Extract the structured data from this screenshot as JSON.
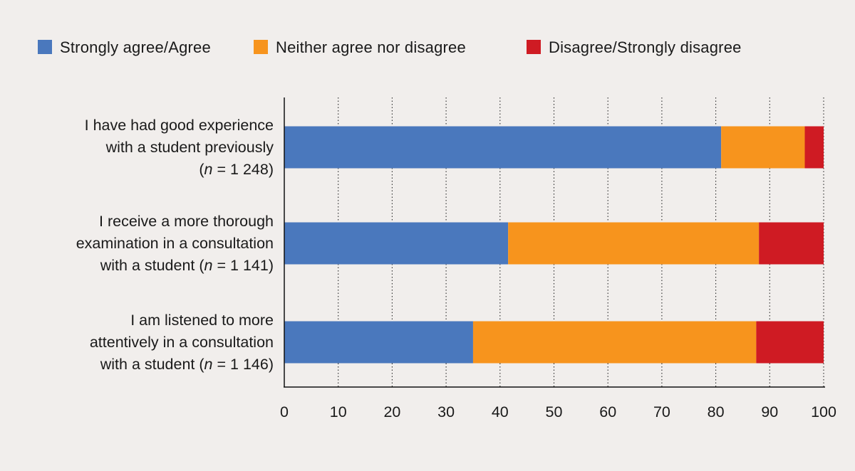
{
  "chart_data": {
    "type": "bar",
    "orientation": "horizontal",
    "stacked": true,
    "categories": [
      {
        "lines": [
          "I have had good experience",
          "with a student previously"
        ],
        "n_line": {
          "prefix": "(",
          "n": "n",
          "eq": " = ",
          "value": "1 248",
          "suffix": ")"
        }
      },
      {
        "lines": [
          "I receive a more thorough",
          "examination in a consultation"
        ],
        "n_line": {
          "prefix": "with a student (",
          "n": "n",
          "eq": " = ",
          "value": "1 141",
          "suffix": ")"
        }
      },
      {
        "lines": [
          "I am listened to more",
          "attentively in a consultation"
        ],
        "n_line": {
          "prefix": "with a student (",
          "n": "n",
          "eq": " = ",
          "value": "1 146",
          "suffix": ")"
        }
      }
    ],
    "series": [
      {
        "name": "Strongly agree/Agree",
        "color": "#4a78bd",
        "values": [
          81,
          41.5,
          35
        ]
      },
      {
        "name": "Neither agree nor disagree",
        "color": "#f7941d",
        "values": [
          15.5,
          46.5,
          52.5
        ]
      },
      {
        "name": "Disagree/Strongly disagree",
        "color": "#cf1b23",
        "values": [
          3.5,
          12,
          12.5
        ]
      }
    ],
    "xlim": [
      0,
      100
    ],
    "xticks": [
      0,
      10,
      20,
      30,
      40,
      50,
      60,
      70,
      80,
      90,
      100
    ],
    "grid": "vertical dotted",
    "legend_position": "top"
  }
}
